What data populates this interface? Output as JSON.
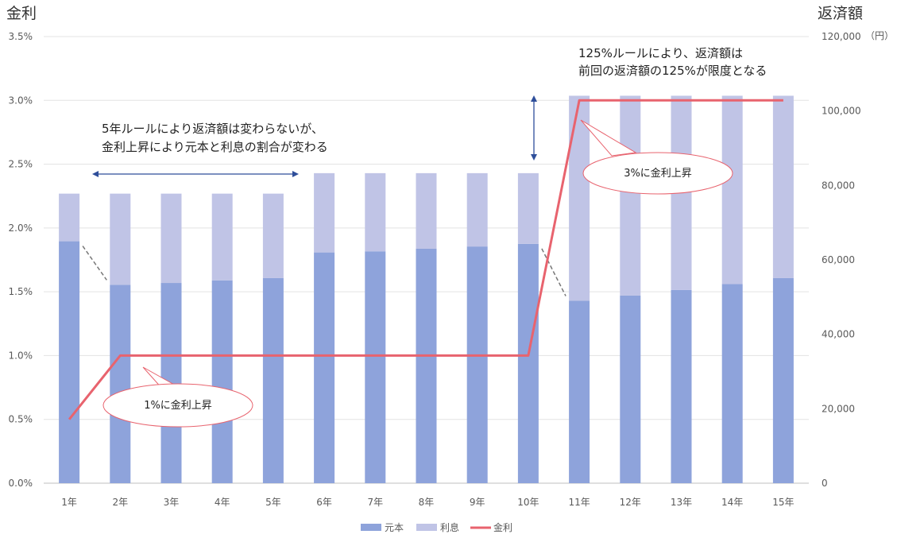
{
  "chart_data": {
    "type": "bar",
    "stacked": true,
    "categories": [
      "1年",
      "2年",
      "3年",
      "4年",
      "5年",
      "6年",
      "7年",
      "8年",
      "9年",
      "10年",
      "11年",
      "12年",
      "13年",
      "14年",
      "15年"
    ],
    "series": [
      {
        "name": "元本",
        "axis": "right",
        "color": "#8ea3db",
        "values": [
          65000,
          53300,
          53800,
          54500,
          55100,
          62000,
          62300,
          63000,
          63600,
          64300,
          49000,
          50400,
          51900,
          53500,
          55100
        ]
      },
      {
        "name": "利息",
        "axis": "right",
        "color": "#c0c4e6",
        "values": [
          12800,
          24500,
          24000,
          23300,
          22700,
          21300,
          21000,
          20300,
          19700,
          19000,
          55100,
          53700,
          52200,
          50600,
          49000
        ]
      },
      {
        "name": "金利",
        "type": "line",
        "axis": "left",
        "color": "#e8636e",
        "values": [
          0.5,
          1.0,
          1.0,
          1.0,
          1.0,
          1.0,
          1.0,
          1.0,
          1.0,
          1.0,
          3.0,
          3.0,
          3.0,
          3.0,
          3.0
        ]
      }
    ],
    "left_axis": {
      "label": "金利",
      "ylim": [
        0,
        3.5
      ],
      "ticks": [
        "0.0%",
        "0.5%",
        "1.0%",
        "1.5%",
        "2.0%",
        "2.5%",
        "3.0%",
        "3.5%"
      ]
    },
    "right_axis": {
      "label": "返済額",
      "unit": "（円）",
      "ylim": [
        0,
        120000
      ],
      "ticks": [
        "0",
        "20,000",
        "40,000",
        "60,000",
        "80,000",
        "100,000",
        "120,000"
      ]
    },
    "grid": true,
    "legend": "bottom",
    "annotations": [
      {
        "id": "rule5",
        "lines": [
          "5年ルールにより返済額は変わらないが、",
          "金利上昇により元本と利息の割合が変わる"
        ]
      },
      {
        "id": "rule125",
        "lines": [
          "125%ルールにより、返済額は",
          "前回の返済額の125%が限度となる"
        ]
      },
      {
        "id": "callout1",
        "text": "1%に金利上昇"
      },
      {
        "id": "callout3",
        "text": "3%に金利上昇"
      }
    ]
  }
}
